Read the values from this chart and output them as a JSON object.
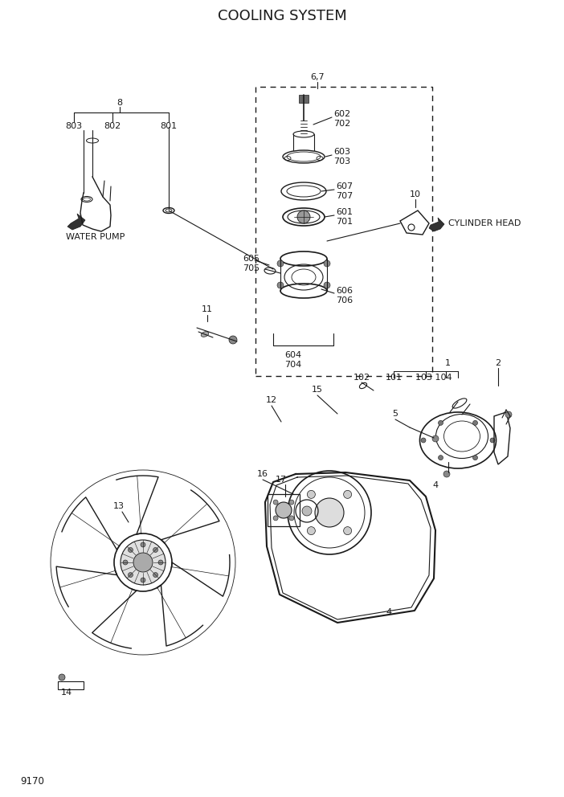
{
  "title": "COOLING SYSTEM",
  "page_number": "9170",
  "bg": "#ffffff",
  "lc": "#1a1a1a",
  "tc": "#1a1a1a",
  "title_fs": 13,
  "fs": 8,
  "figsize": [
    7.02,
    9.92
  ],
  "dpi": 100
}
